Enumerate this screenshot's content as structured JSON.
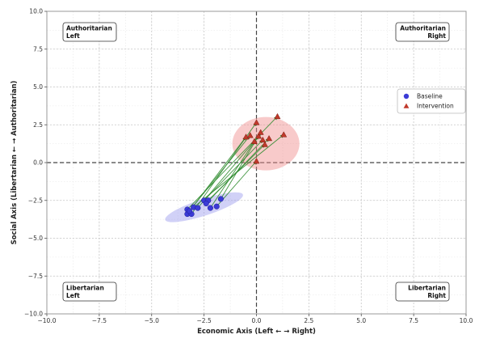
{
  "chart_data": {
    "type": "scatter",
    "xlabel": "Economic Axis (Left ← → Right)",
    "ylabel": "Social Axis (Libertarian ← → Authoritarian)",
    "xlim": [
      -10,
      10
    ],
    "ylim": [
      -10,
      10
    ],
    "x_ticks": [
      -10,
      -7.5,
      -5,
      -2.5,
      0,
      2.5,
      5,
      7.5,
      10
    ],
    "y_ticks": [
      -10,
      -7.5,
      -5,
      -2.5,
      0,
      2.5,
      5,
      7.5,
      10
    ],
    "x_tick_labels": [
      "−10.0",
      "−7.5",
      "−5.0",
      "−2.5",
      "0.0",
      "2.5",
      "5.0",
      "7.5",
      "10.0"
    ],
    "y_tick_labels": [
      "−10.0",
      "−7.5",
      "−5.0",
      "−2.5",
      "0.0",
      "2.5",
      "5.0",
      "7.5",
      "10.0"
    ],
    "grid": true,
    "minor_grid": true,
    "legend_position": "right",
    "quadrant_labels": {
      "top_left": [
        "Authoritarian",
        "Left"
      ],
      "top_right": [
        "Authoritarian",
        "Right"
      ],
      "bottom_left": [
        "Libertarian",
        "Left"
      ],
      "bottom_right": [
        "Libertarian",
        "Right"
      ]
    },
    "colors": {
      "baseline": "#3b3bd6",
      "intervention": "#c0392b",
      "arrow": "#2e8b2e",
      "baseline_ellipse": "#9999ee",
      "intervention_ellipse": "#f08a8a"
    },
    "series": [
      {
        "name": "Baseline",
        "marker": "circle",
        "points": [
          [
            -3.3,
            -3.4
          ],
          [
            -3.1,
            -3.4
          ],
          [
            -3.3,
            -3.1
          ],
          [
            -3.0,
            -2.95
          ],
          [
            -2.8,
            -3.0
          ],
          [
            -2.5,
            -2.5
          ],
          [
            -2.3,
            -2.5
          ],
          [
            -2.2,
            -3.0
          ],
          [
            -1.9,
            -2.9
          ],
          [
            -1.7,
            -2.4
          ],
          [
            -3.2,
            -3.2
          ],
          [
            -2.4,
            -2.7
          ]
        ]
      },
      {
        "name": "Intervention",
        "marker": "triangle",
        "points": [
          [
            -0.5,
            1.7
          ],
          [
            0.0,
            2.65
          ],
          [
            1.0,
            3.05
          ],
          [
            1.3,
            1.85
          ],
          [
            0.1,
            1.75
          ],
          [
            0.3,
            1.5
          ],
          [
            0.4,
            1.2
          ],
          [
            -0.1,
            1.4
          ],
          [
            0.0,
            0.1
          ],
          [
            0.2,
            2.0
          ],
          [
            -0.3,
            1.8
          ],
          [
            0.6,
            1.6
          ]
        ]
      }
    ],
    "ellipses": [
      {
        "series": "Baseline",
        "center": [
          -2.5,
          -2.95
        ],
        "semi_axes": [
          1.95,
          0.55
        ],
        "angle_deg": 18
      },
      {
        "series": "Intervention",
        "center": [
          0.45,
          1.25
        ],
        "semi_axes": [
          1.0,
          2.35
        ],
        "angle_deg": 90
      }
    ]
  }
}
